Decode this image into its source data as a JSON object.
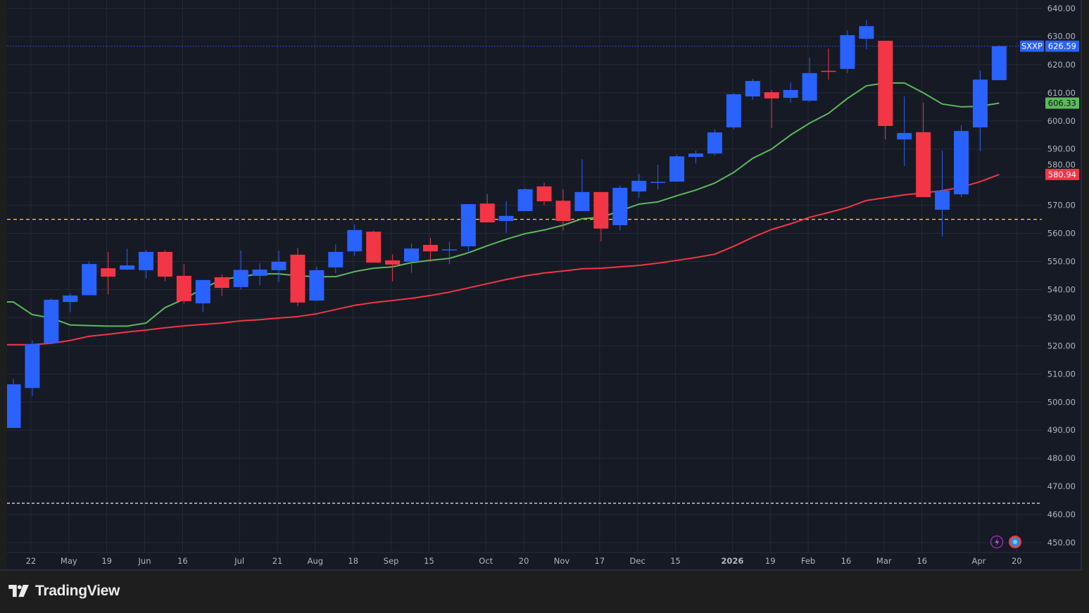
{
  "branding": {
    "logo_text": "TradingView"
  },
  "symbol": "SXXP",
  "colors": {
    "background": "#161a25",
    "up": "#2962ff",
    "down": "#f23645",
    "ma_fast": "#5cb85c",
    "ma_slow": "#f23645",
    "support_line": "#f5e31b",
    "low_line": "#ffffff",
    "grid": "#252a36",
    "axis_text": "#b2b5be"
  },
  "icons": [
    "lightning-icon",
    "globe-icon"
  ],
  "chart_data": {
    "type": "candlestick",
    "title": "",
    "xlabel": "",
    "ylabel": "",
    "ylim": [
      450,
      640
    ],
    "grid": true,
    "y_ticks": [
      "640.00",
      "630.00",
      "620.00",
      "610.00",
      "600.00",
      "590.00",
      "580.00",
      "570.00",
      "560.00",
      "550.00",
      "540.00",
      "530.00",
      "520.00",
      "510.00",
      "500.00",
      "490.00",
      "480.00",
      "470.00",
      "460.00",
      "450.00"
    ],
    "x_tick_labels": [
      {
        "label": "22",
        "candle": 1
      },
      {
        "label": "May",
        "candle": 3
      },
      {
        "label": "19",
        "candle": 5
      },
      {
        "label": "Jun",
        "candle": 7
      },
      {
        "label": "16",
        "candle": 9
      },
      {
        "label": "Jul",
        "candle": 12
      },
      {
        "label": "21",
        "candle": 14
      },
      {
        "label": "Aug",
        "candle": 16
      },
      {
        "label": "18",
        "candle": 18
      },
      {
        "label": "Sep",
        "candle": 20
      },
      {
        "label": "15",
        "candle": 22
      },
      {
        "label": "Oct",
        "candle": 25
      },
      {
        "label": "20",
        "candle": 27
      },
      {
        "label": "Nov",
        "candle": 29
      },
      {
        "label": "17",
        "candle": 31
      },
      {
        "label": "Dec",
        "candle": 33
      },
      {
        "label": "15",
        "candle": 35
      },
      {
        "label": "2026",
        "candle": 38
      },
      {
        "label": "19",
        "candle": 40
      },
      {
        "label": "Feb",
        "candle": 42
      },
      {
        "label": "16",
        "candle": 44
      },
      {
        "label": "Mar",
        "candle": 46
      },
      {
        "label": "16",
        "candle": 48
      },
      {
        "label": "Apr",
        "candle": 51
      },
      {
        "label": "20",
        "candle": 53
      }
    ],
    "candles": [
      [
        490.8,
        508.3,
        490.8,
        506.3
      ],
      [
        505.0,
        521.9,
        502.1,
        520.6
      ],
      [
        521.0,
        536.8,
        521.0,
        536.4
      ],
      [
        535.6,
        538.6,
        531.9,
        537.9
      ],
      [
        538.0,
        550.0,
        538.0,
        549.1
      ],
      [
        547.6,
        553.4,
        538.3,
        544.6
      ],
      [
        547.1,
        554.5,
        547.0,
        548.6
      ],
      [
        546.9,
        554.0,
        544.0,
        553.4
      ],
      [
        553.4,
        554.0,
        543.0,
        544.6
      ],
      [
        544.9,
        549.0,
        535.0,
        535.9
      ],
      [
        535.1,
        543.4,
        532.0,
        543.4
      ],
      [
        544.4,
        545.4,
        537.7,
        540.6
      ],
      [
        540.9,
        553.9,
        540.0,
        547.0
      ],
      [
        544.9,
        549.4,
        541.6,
        547.1
      ],
      [
        546.9,
        553.9,
        542.6,
        549.9
      ],
      [
        552.4,
        554.9,
        534.1,
        535.4
      ],
      [
        536.1,
        548.1,
        535.9,
        546.9
      ],
      [
        547.9,
        556.1,
        545.9,
        553.4
      ],
      [
        553.6,
        563.2,
        552.1,
        561.2
      ],
      [
        560.6,
        561.0,
        549.6,
        549.6
      ],
      [
        550.4,
        552.6,
        542.9,
        548.9
      ],
      [
        549.9,
        556.4,
        545.9,
        554.6
      ],
      [
        555.9,
        558.4,
        549.9,
        553.6
      ],
      [
        554.1,
        557.1,
        549.0,
        554.3
      ],
      [
        555.4,
        570.4,
        552.9,
        570.4
      ],
      [
        570.6,
        573.9,
        563.9,
        563.9
      ],
      [
        564.4,
        571.4,
        560.1,
        566.2
      ],
      [
        567.9,
        576.0,
        567.9,
        575.7
      ],
      [
        576.7,
        578.0,
        570.0,
        571.4
      ],
      [
        571.6,
        575.7,
        561.0,
        564.4
      ],
      [
        567.9,
        586.4,
        567.9,
        574.7
      ],
      [
        574.7,
        574.7,
        557.1,
        561.7
      ],
      [
        562.9,
        577.0,
        561.0,
        576.2
      ],
      [
        574.9,
        581.2,
        572.7,
        578.7
      ],
      [
        578.1,
        584.4,
        575.7,
        578.3
      ],
      [
        578.4,
        588.0,
        578.4,
        587.4
      ],
      [
        587.2,
        589.4,
        584.9,
        588.4
      ],
      [
        588.4,
        597.0,
        587.7,
        595.9
      ],
      [
        597.7,
        609.8,
        597.0,
        609.5
      ],
      [
        608.7,
        615.0,
        607.5,
        614.2
      ],
      [
        610.2,
        611.0,
        597.4,
        608.0
      ],
      [
        608.2,
        613.7,
        606.5,
        611.0
      ],
      [
        607.2,
        622.5,
        606.7,
        617.0
      ],
      [
        617.8,
        625.7,
        614.7,
        617.7
      ],
      [
        618.5,
        632.2,
        617.0,
        630.5
      ],
      [
        629.2,
        636.0,
        625.5,
        633.7
      ],
      [
        628.5,
        628.5,
        593.4,
        598.2
      ],
      [
        593.4,
        608.7,
        583.9,
        595.7
      ],
      [
        596.0,
        606.5,
        572.9,
        572.9
      ],
      [
        568.4,
        589.4,
        558.9,
        575.2
      ],
      [
        573.9,
        598.4,
        573.0,
        596.4
      ],
      [
        597.7,
        618.0,
        589.2,
        614.7
      ],
      [
        614.5,
        626.9,
        614.5,
        626.59
      ]
    ],
    "series": [
      {
        "values": [
          535.6,
          531.1,
          529.9,
          527.4,
          527.2,
          527.0,
          527.0,
          528.1,
          533.6,
          536.6,
          540.4,
          543.6,
          544.6,
          545.6,
          545.6,
          544.9,
          544.6,
          544.6,
          546.4,
          547.6,
          548.1,
          549.6,
          550.4,
          551.1,
          553.1,
          555.6,
          557.9,
          559.9,
          561.2,
          562.9,
          565.2,
          565.7,
          568.0,
          570.4,
          571.2,
          573.4,
          575.4,
          577.9,
          581.7,
          586.7,
          590.0,
          595.0,
          599.2,
          602.7,
          608.0,
          612.5,
          613.5,
          613.5,
          610.0,
          606.0,
          605.0,
          605.2,
          606.33
        ],
        "color": "#5cb85c"
      },
      {
        "values": [
          520.4,
          520.4,
          520.9,
          521.9,
          523.4,
          524.1,
          524.9,
          525.6,
          526.4,
          527.1,
          527.6,
          528.1,
          528.9,
          529.3,
          529.9,
          530.4,
          531.4,
          532.9,
          534.4,
          535.4,
          536.1,
          536.9,
          537.9,
          539.1,
          540.6,
          542.1,
          543.6,
          544.9,
          545.9,
          546.6,
          547.4,
          547.6,
          548.1,
          548.6,
          549.4,
          550.4,
          551.4,
          552.6,
          555.4,
          558.6,
          561.4,
          563.4,
          565.7,
          567.4,
          569.2,
          571.7,
          572.7,
          573.7,
          574.4,
          575.2,
          576.4,
          578.4,
          580.94
        ],
        "color": "#f23645"
      }
    ],
    "horizontal_lines": [
      {
        "value": 626.59,
        "style": "dotted",
        "color": "#2962ff"
      },
      {
        "value": 565.0,
        "style": "dashed",
        "color": "#f5e31b"
      },
      {
        "value": 464.0,
        "style": "dashed",
        "color": "#ffffff"
      }
    ],
    "price_tags": [
      {
        "symbol": "SXXP",
        "value": "626.59",
        "color": "#2962ff"
      },
      {
        "value": "606.33",
        "color": "#5cb85c"
      },
      {
        "value": "580.94",
        "color": "#f23645"
      }
    ]
  }
}
